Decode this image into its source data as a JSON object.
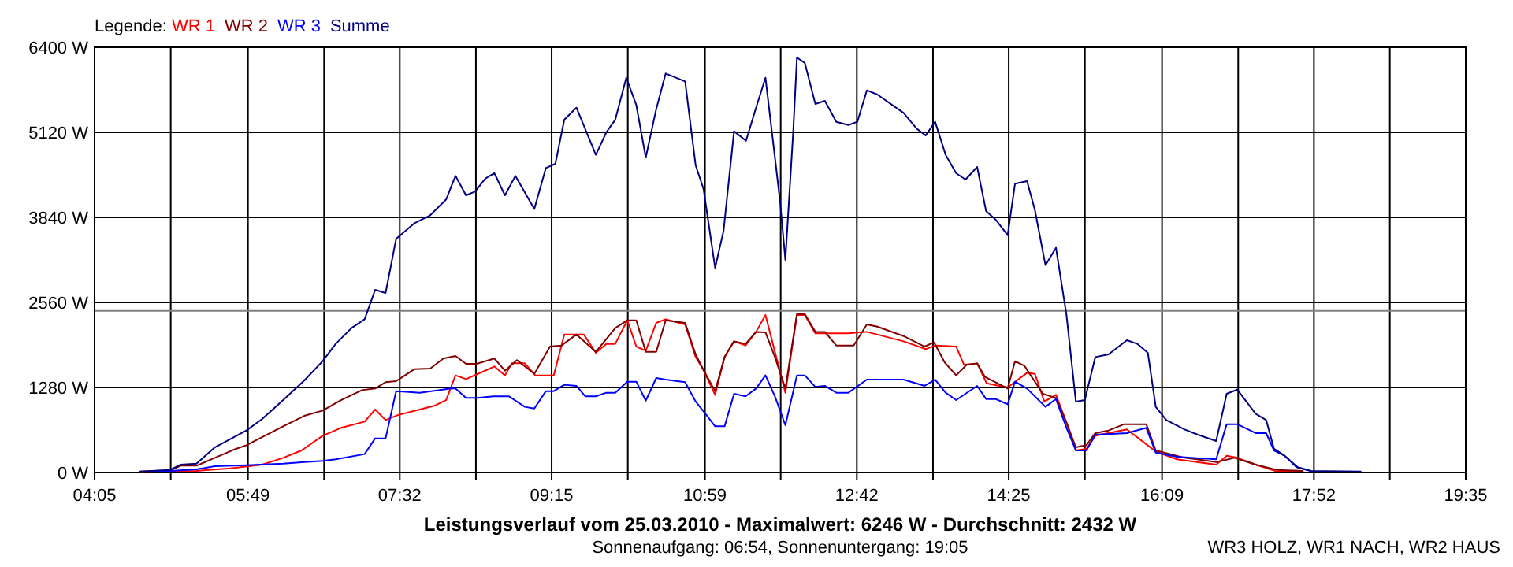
{
  "chart_data": {
    "type": "line",
    "title": "Leistungsverlauf vom 25.03.2010 - Maximalwert: 6246 W - Durchschnitt: 2432 W",
    "subtitle": "Sonnenaufgang: 06:54, Sonnenuntergang: 19:05",
    "legend_title": "Legende:",
    "legend": "top left",
    "grid": true,
    "line_style": "solid",
    "marker": "none",
    "annotations": [
      "WR3 HOLZ, WR1 NACH, WR2 HAUS"
    ],
    "xlim": [
      4.083,
      19.583
    ],
    "xticks": [
      {
        "value": 4.083,
        "label": "04:05"
      },
      {
        "value": 4.944,
        "label": null
      },
      {
        "value": 5.817,
        "label": "05:49"
      },
      {
        "value": 6.678,
        "label": null
      },
      {
        "value": 7.533,
        "label": "07:32"
      },
      {
        "value": 8.394,
        "label": null
      },
      {
        "value": 9.25,
        "label": "09:15"
      },
      {
        "value": 10.111,
        "label": null
      },
      {
        "value": 10.983,
        "label": "10:59"
      },
      {
        "value": 11.839,
        "label": null
      },
      {
        "value": 12.7,
        "label": "12:42"
      },
      {
        "value": 13.561,
        "label": null
      },
      {
        "value": 14.417,
        "label": "14:25"
      },
      {
        "value": 15.278,
        "label": null
      },
      {
        "value": 16.15,
        "label": "16:09"
      },
      {
        "value": 17.011,
        "label": null
      },
      {
        "value": 17.867,
        "label": "17:52"
      },
      {
        "value": 18.725,
        "label": null
      },
      {
        "value": 19.583,
        "label": "19:35"
      }
    ],
    "ylim": [
      0,
      6400
    ],
    "yticks": [
      {
        "value": 0,
        "label": "0 W"
      },
      {
        "value": 1280,
        "label": "1280 W"
      },
      {
        "value": 2560,
        "label": "2560 W"
      },
      {
        "value": 3840,
        "label": "3840 W"
      },
      {
        "value": 5120,
        "label": "5120 W"
      },
      {
        "value": 6400,
        "label": "6400 W"
      }
    ],
    "ref_lines": [
      {
        "axis": "y",
        "value": 2432,
        "color": "#808080"
      }
    ],
    "series": [
      {
        "name": "WR 1",
        "color": "#ff0000",
        "x": [
          4.6,
          4.938,
          5.235,
          5.621,
          5.978,
          6.215,
          6.423,
          6.661,
          6.869,
          7.136,
          7.255,
          7.373,
          7.522,
          7.759,
          7.937,
          8.057,
          8.163,
          8.282,
          8.472,
          8.603,
          8.722,
          8.799,
          8.947,
          9.066,
          9.274,
          9.393,
          9.613,
          9.75,
          9.868,
          9.969,
          10.105,
          10.207,
          10.314,
          10.432,
          10.539,
          10.759,
          10.878,
          10.967,
          11.098,
          11.205,
          11.312,
          11.442,
          11.561,
          11.667,
          11.774,
          11.892,
          12.023,
          12.112,
          12.231,
          12.338,
          12.605,
          12.813,
          13.228,
          13.478,
          13.585,
          13.823,
          13.912,
          14.06,
          14.167,
          14.405,
          14.624,
          14.713,
          14.82,
          14.951,
          15.07,
          15.176,
          15.295,
          15.396,
          15.753,
          16.079,
          16.317,
          16.762,
          16.881,
          17.0,
          17.208,
          17.446,
          17.742
        ],
        "values": [
          8,
          16,
          24,
          63,
          119,
          221,
          332,
          553,
          672,
          766,
          948,
          790,
          869,
          948,
          1011,
          1090,
          1462,
          1406,
          1517,
          1596,
          1462,
          1643,
          1643,
          1462,
          1462,
          2078,
          2078,
          1801,
          1936,
          1936,
          2291,
          1896,
          1833,
          2252,
          2307,
          2228,
          1738,
          1541,
          1169,
          1738,
          1975,
          1912,
          2117,
          2370,
          1817,
          1201,
          2370,
          2370,
          2094,
          2094,
          2094,
          2117,
          1975,
          1857,
          1912,
          1896,
          1620,
          1643,
          1343,
          1280,
          1501,
          1485,
          1067,
          1169,
          751,
          332,
          356,
          553,
          648,
          316,
          198,
          119,
          253,
          221,
          119,
          16,
          16
        ]
      },
      {
        "name": "WR 2",
        "color": "#800000",
        "x": [
          4.6,
          4.938,
          5.057,
          5.235,
          5.443,
          5.651,
          5.799,
          6.007,
          6.215,
          6.453,
          6.661,
          6.869,
          7.106,
          7.255,
          7.373,
          7.492,
          7.7,
          7.878,
          8.026,
          8.163,
          8.282,
          8.401,
          8.603,
          8.722,
          8.858,
          9.054,
          9.232,
          9.363,
          9.53,
          9.75,
          9.969,
          10.105,
          10.207,
          10.314,
          10.432,
          10.539,
          10.759,
          10.878,
          10.967,
          11.098,
          11.205,
          11.312,
          11.442,
          11.561,
          11.667,
          11.774,
          11.892,
          12.023,
          12.112,
          12.231,
          12.338,
          12.468,
          12.664,
          12.813,
          12.932,
          13.228,
          13.466,
          13.573,
          13.692,
          13.823,
          13.941,
          14.06,
          14.149,
          14.405,
          14.488,
          14.595,
          14.803,
          14.951,
          15.07,
          15.176,
          15.295,
          15.396,
          15.545,
          15.723,
          15.972,
          16.079,
          16.406,
          16.762,
          16.971,
          17.208,
          17.446,
          17.742
        ],
        "values": [
          16,
          32,
          103,
          103,
          221,
          340,
          411,
          553,
          695,
          853,
          932,
          1090,
          1240,
          1264,
          1359,
          1375,
          1557,
          1564,
          1715,
          1754,
          1636,
          1636,
          1715,
          1533,
          1691,
          1485,
          1896,
          1912,
          2078,
          1817,
          2173,
          2291,
          2291,
          1817,
          1817,
          2291,
          2252,
          1778,
          1541,
          1225,
          1738,
          1975,
          1936,
          2117,
          2110,
          1738,
          1264,
          2386,
          2386,
          2117,
          2117,
          1912,
          1912,
          2228,
          2196,
          2054,
          1896,
          1959,
          1659,
          1462,
          1620,
          1643,
          1438,
          1264,
          1675,
          1604,
          1185,
          1122,
          751,
          379,
          411,
          593,
          632,
          727,
          727,
          332,
          221,
          158,
          221,
          119,
          40,
          24
        ]
      },
      {
        "name": "WR 3",
        "color": "#0000ff",
        "x": [
          4.6,
          4.938,
          5.235,
          5.443,
          5.799,
          6.215,
          6.453,
          6.661,
          6.809,
          7.136,
          7.255,
          7.373,
          7.492,
          7.759,
          8.116,
          8.163,
          8.282,
          8.413,
          8.591,
          8.769,
          8.947,
          9.054,
          9.185,
          9.274,
          9.393,
          9.53,
          9.631,
          9.75,
          9.868,
          9.969,
          10.105,
          10.207,
          10.314,
          10.432,
          10.539,
          10.759,
          10.878,
          10.997,
          11.098,
          11.205,
          11.312,
          11.442,
          11.561,
          11.667,
          11.774,
          11.892,
          12.023,
          12.112,
          12.231,
          12.338,
          12.468,
          12.605,
          12.813,
          13.228,
          13.466,
          13.585,
          13.704,
          13.823,
          14.06,
          14.161,
          14.268,
          14.405,
          14.488,
          14.624,
          14.832,
          14.951,
          15.07,
          15.176,
          15.295,
          15.396,
          15.753,
          15.972,
          16.079,
          16.317,
          16.762,
          16.881,
          17.0,
          17.208,
          17.327,
          17.416,
          17.535,
          17.683,
          17.831
        ],
        "values": [
          8,
          24,
          47,
          95,
          111,
          134,
          158,
          174,
          198,
          277,
          514,
          514,
          1225,
          1201,
          1264,
          1264,
          1122,
          1122,
          1146,
          1146,
          988,
          964,
          1225,
          1225,
          1320,
          1304,
          1146,
          1146,
          1201,
          1201,
          1367,
          1367,
          1082,
          1422,
          1398,
          1359,
          1067,
          869,
          695,
          695,
          1185,
          1146,
          1264,
          1462,
          1146,
          711,
          1462,
          1462,
          1288,
          1304,
          1201,
          1201,
          1398,
          1398,
          1304,
          1398,
          1201,
          1090,
          1304,
          1106,
          1106,
          1027,
          1367,
          1264,
          988,
          1106,
          672,
          332,
          332,
          569,
          593,
          672,
          300,
          237,
          198,
          727,
          727,
          593,
          593,
          332,
          253,
          79,
          24
        ]
      },
      {
        "name": "Summe",
        "color": "#000080",
        "x": [
          4.6,
          4.938,
          5.057,
          5.235,
          5.443,
          5.799,
          5.978,
          6.215,
          6.453,
          6.661,
          6.809,
          6.987,
          7.136,
          7.255,
          7.373,
          7.492,
          7.7,
          7.878,
          8.057,
          8.163,
          8.282,
          8.383,
          8.502,
          8.603,
          8.722,
          8.84,
          9.054,
          9.185,
          9.292,
          9.393,
          9.53,
          9.75,
          9.868,
          9.969,
          10.094,
          10.207,
          10.314,
          10.432,
          10.539,
          10.759,
          10.878,
          10.967,
          11.098,
          11.193,
          11.312,
          11.447,
          11.561,
          11.667,
          11.774,
          11.833,
          11.892,
          11.981,
          12.023,
          12.112,
          12.231,
          12.338,
          12.468,
          12.605,
          12.706,
          12.813,
          12.932,
          13.228,
          13.377,
          13.478,
          13.585,
          13.704,
          13.823,
          13.929,
          14.06,
          14.161,
          14.268,
          14.405,
          14.488,
          14.624,
          14.713,
          14.832,
          14.951,
          15.07,
          15.176,
          15.277,
          15.396,
          15.545,
          15.753,
          15.872,
          15.99,
          16.079,
          16.198,
          16.406,
          16.555,
          16.762,
          16.881,
          17.0,
          17.208,
          17.327,
          17.416,
          17.535,
          17.671,
          17.831,
          18.395
        ],
        "values": [
          16,
          40,
          119,
          134,
          379,
          632,
          806,
          1090,
          1383,
          1675,
          1936,
          2173,
          2307,
          2750,
          2702,
          3516,
          3753,
          3872,
          4109,
          4464,
          4172,
          4227,
          4425,
          4504,
          4172,
          4464,
          3966,
          4583,
          4646,
          5309,
          5491,
          4780,
          5120,
          5309,
          5941,
          5531,
          4741,
          5468,
          6005,
          5886,
          4622,
          4267,
          3081,
          3634,
          5136,
          4993,
          5491,
          5941,
          4741,
          4069,
          3200,
          5136,
          6246,
          6163,
          5547,
          5594,
          5278,
          5230,
          5278,
          5752,
          5689,
          5412,
          5175,
          5072,
          5278,
          4780,
          4504,
          4409,
          4598,
          3935,
          3808,
          3571,
          4346,
          4385,
          3950,
          3121,
          3382,
          2370,
          1067,
          1090,
          1738,
          1778,
          1991,
          1936,
          1801,
          988,
          790,
          648,
          569,
          474,
          1185,
          1248,
          885,
          790,
          356,
          253,
          79,
          24,
          16
        ]
      }
    ]
  }
}
